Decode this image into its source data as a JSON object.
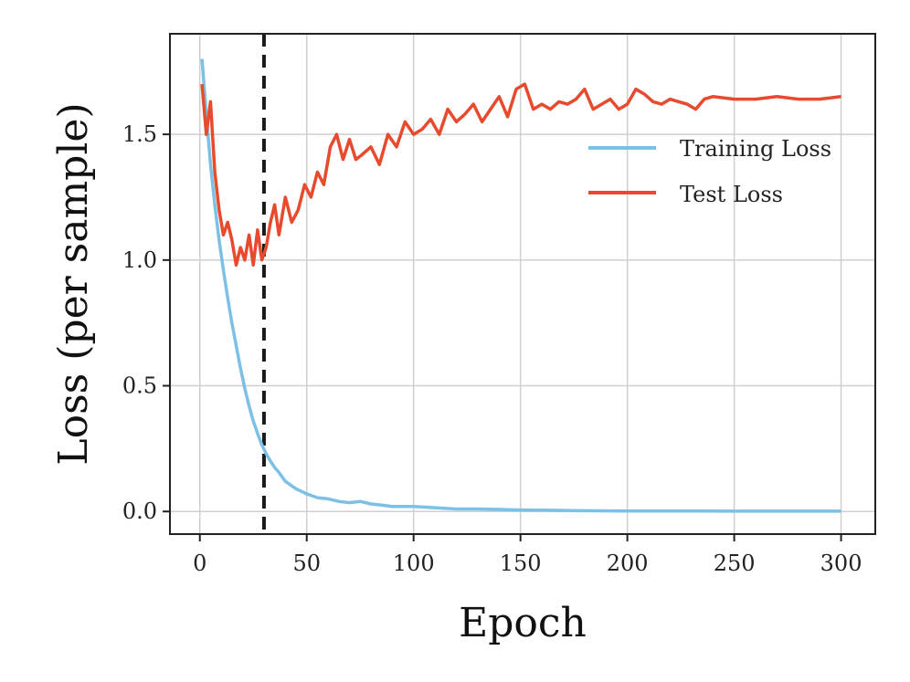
{
  "chart_data": {
    "type": "line",
    "title": "",
    "xlabel": "Epoch",
    "ylabel": "Loss (per sample)",
    "xlim": [
      -14,
      316
    ],
    "ylim": [
      -0.09,
      1.9
    ],
    "x_ticks": [
      0,
      50,
      100,
      150,
      200,
      250,
      300
    ],
    "y_ticks": [
      0.0,
      0.5,
      1.0,
      1.5
    ],
    "x_tick_labels": [
      "0",
      "50",
      "100",
      "150",
      "200",
      "250",
      "300"
    ],
    "y_tick_labels": [
      "0.0",
      "0.5",
      "1.0",
      "1.5"
    ],
    "grid": true,
    "legend_position": "right, upper-middle",
    "vline": {
      "x": 30,
      "style": "dashed",
      "color": "#1a1a1a"
    },
    "series": [
      {
        "name": "Training Loss",
        "color": "#7dc0e6",
        "x": [
          1,
          3,
          5,
          7,
          9,
          11,
          13,
          15,
          17,
          19,
          21,
          23,
          25,
          27,
          29,
          31,
          33,
          35,
          37,
          40,
          45,
          50,
          55,
          60,
          65,
          70,
          75,
          80,
          85,
          90,
          95,
          100,
          110,
          120,
          130,
          140,
          150,
          160,
          170,
          180,
          200,
          220,
          250,
          280,
          300
        ],
        "y": [
          1.8,
          1.58,
          1.38,
          1.22,
          1.08,
          0.96,
          0.85,
          0.75,
          0.66,
          0.57,
          0.49,
          0.42,
          0.36,
          0.31,
          0.265,
          0.23,
          0.2,
          0.175,
          0.155,
          0.12,
          0.09,
          0.07,
          0.055,
          0.05,
          0.04,
          0.035,
          0.04,
          0.03,
          0.025,
          0.02,
          0.02,
          0.02,
          0.015,
          0.01,
          0.01,
          0.008,
          0.006,
          0.005,
          0.004,
          0.003,
          0.002,
          0.002,
          0.001,
          0.001,
          0.001
        ]
      },
      {
        "name": "Test Loss",
        "color": "#e84a2e",
        "x": [
          1,
          3,
          5,
          7,
          9,
          11,
          13,
          15,
          17,
          19,
          21,
          23,
          25,
          27,
          29,
          31,
          33,
          35,
          37,
          40,
          43,
          46,
          49,
          52,
          55,
          58,
          61,
          64,
          67,
          70,
          73,
          76,
          80,
          84,
          88,
          92,
          96,
          100,
          104,
          108,
          112,
          116,
          120,
          124,
          128,
          132,
          136,
          140,
          144,
          148,
          152,
          156,
          160,
          164,
          168,
          172,
          176,
          180,
          184,
          188,
          192,
          196,
          200,
          204,
          208,
          212,
          216,
          220,
          224,
          228,
          232,
          236,
          240,
          250,
          260,
          270,
          280,
          290,
          300
        ],
        "y": [
          1.7,
          1.5,
          1.63,
          1.35,
          1.2,
          1.1,
          1.15,
          1.08,
          0.98,
          1.05,
          1.0,
          1.1,
          0.98,
          1.12,
          1.0,
          1.05,
          1.15,
          1.22,
          1.1,
          1.25,
          1.15,
          1.2,
          1.3,
          1.25,
          1.35,
          1.3,
          1.45,
          1.5,
          1.4,
          1.48,
          1.4,
          1.42,
          1.45,
          1.38,
          1.5,
          1.45,
          1.55,
          1.5,
          1.52,
          1.56,
          1.5,
          1.6,
          1.55,
          1.58,
          1.62,
          1.55,
          1.6,
          1.65,
          1.57,
          1.68,
          1.7,
          1.6,
          1.62,
          1.6,
          1.63,
          1.62,
          1.64,
          1.68,
          1.6,
          1.62,
          1.64,
          1.6,
          1.62,
          1.68,
          1.66,
          1.63,
          1.62,
          1.64,
          1.63,
          1.62,
          1.6,
          1.64,
          1.65,
          1.64,
          1.64,
          1.65,
          1.64,
          1.64,
          1.65
        ]
      }
    ]
  }
}
